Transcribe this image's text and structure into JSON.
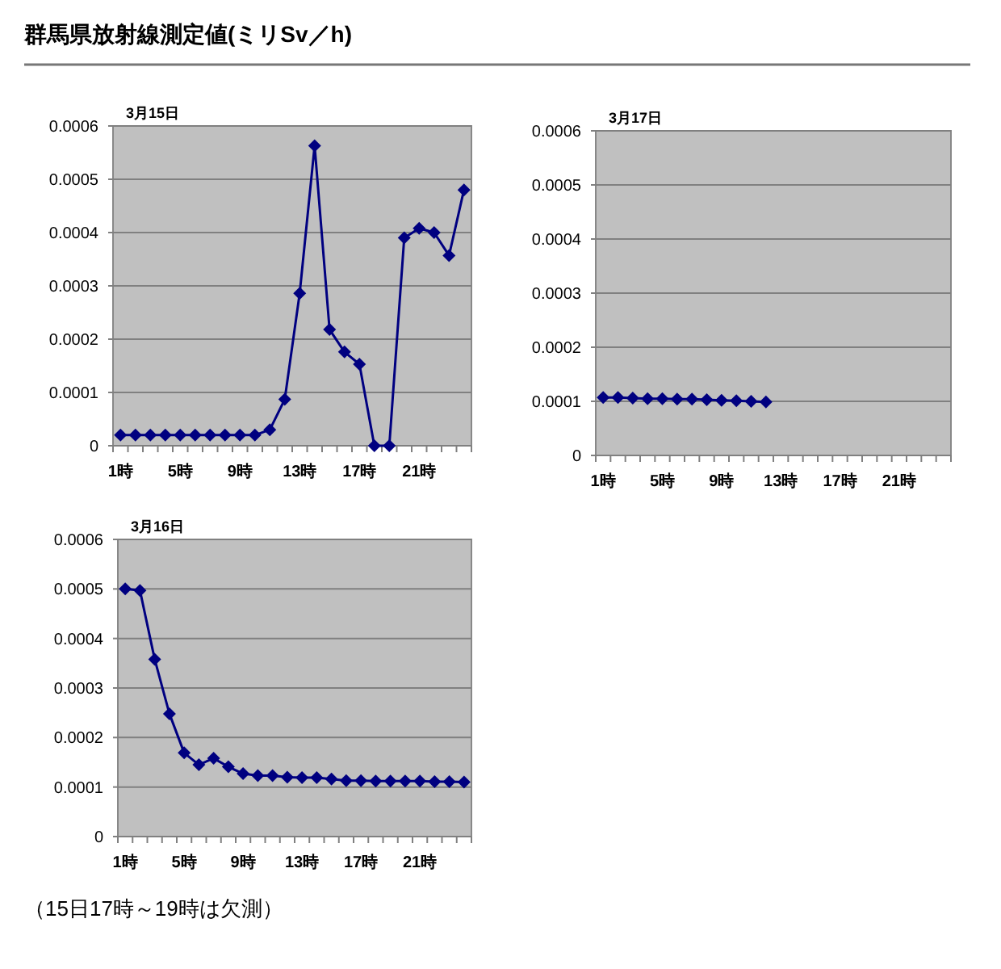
{
  "chart_data": [
    {
      "type": "other",
      "title": "群馬県放射線測定値(ミリSv／h)",
      "annotations": [
        "（15日17時～19時は欠測）"
      ]
    },
    {
      "type": "line",
      "title": "3月15日",
      "categories": [
        "1時",
        null,
        null,
        null,
        "5時",
        null,
        null,
        null,
        "9時",
        null,
        null,
        null,
        "13時",
        null,
        null,
        null,
        "17時",
        null,
        null,
        null,
        "21時",
        null,
        null,
        null
      ],
      "series": [
        {
          "color": "#000080",
          "values": [
            2e-05,
            2e-05,
            2e-05,
            2e-05,
            2e-05,
            2e-05,
            2e-05,
            2e-05,
            2e-05,
            2e-05,
            3e-05,
            8.7e-05,
            0.000286,
            0.000563,
            0.000218,
            0.000176,
            0.000153,
            0,
            0,
            0.00039,
            0.000408,
            0.0004,
            0.000357,
            0.00048
          ]
        }
      ],
      "ylim": [
        0,
        0.0006
      ],
      "yticks": [
        0,
        0.0001,
        0.0002,
        0.0003,
        0.0004,
        0.0005,
        0.0006
      ],
      "grid": "y",
      "marker": "diamond",
      "line_style": "solid"
    },
    {
      "type": "line",
      "title": "3月17日",
      "categories": [
        "1時",
        null,
        null,
        null,
        "5時",
        null,
        null,
        null,
        "9時",
        null,
        null,
        null,
        "13時",
        null,
        null,
        null,
        "17時",
        null,
        null,
        null,
        "21時",
        null,
        null,
        null
      ],
      "series": [
        {
          "color": "#000080",
          "values": [
            0.000107,
            0.000107,
            0.000106,
            0.000105,
            0.000105,
            0.000104,
            0.000104,
            0.000103,
            0.000102,
            0.000101,
            0.0001,
            9.9e-05,
            null,
            null,
            null,
            null,
            null,
            null,
            null,
            null,
            null,
            null,
            null,
            null
          ]
        }
      ],
      "ylim": [
        0,
        0.0006
      ],
      "yticks": [
        0,
        0.0001,
        0.0002,
        0.0003,
        0.0004,
        0.0005,
        0.0006
      ],
      "grid": "y",
      "marker": "diamond",
      "line_style": "solid"
    },
    {
      "type": "line",
      "title": "3月16日",
      "categories": [
        "1時",
        null,
        null,
        null,
        "5時",
        null,
        null,
        null,
        "9時",
        null,
        null,
        null,
        "13時",
        null,
        null,
        null,
        "17時",
        null,
        null,
        null,
        "21時",
        null,
        null,
        null
      ],
      "series": [
        {
          "color": "#000080",
          "values": [
            0.0005,
            0.000497,
            0.000358,
            0.000248,
            0.000169,
            0.000145,
            0.000158,
            0.000141,
            0.000127,
            0.000123,
            0.000123,
            0.00012,
            0.000119,
            0.000119,
            0.000116,
            0.000113,
            0.000113,
            0.000112,
            0.000112,
            0.000112,
            0.000112,
            0.000111,
            0.000111,
            0.00011
          ]
        }
      ],
      "ylim": [
        0,
        0.0006
      ],
      "yticks": [
        0,
        0.0001,
        0.0002,
        0.0003,
        0.0004,
        0.0005,
        0.0006
      ],
      "grid": "y",
      "marker": "diamond",
      "line_style": "solid"
    }
  ]
}
